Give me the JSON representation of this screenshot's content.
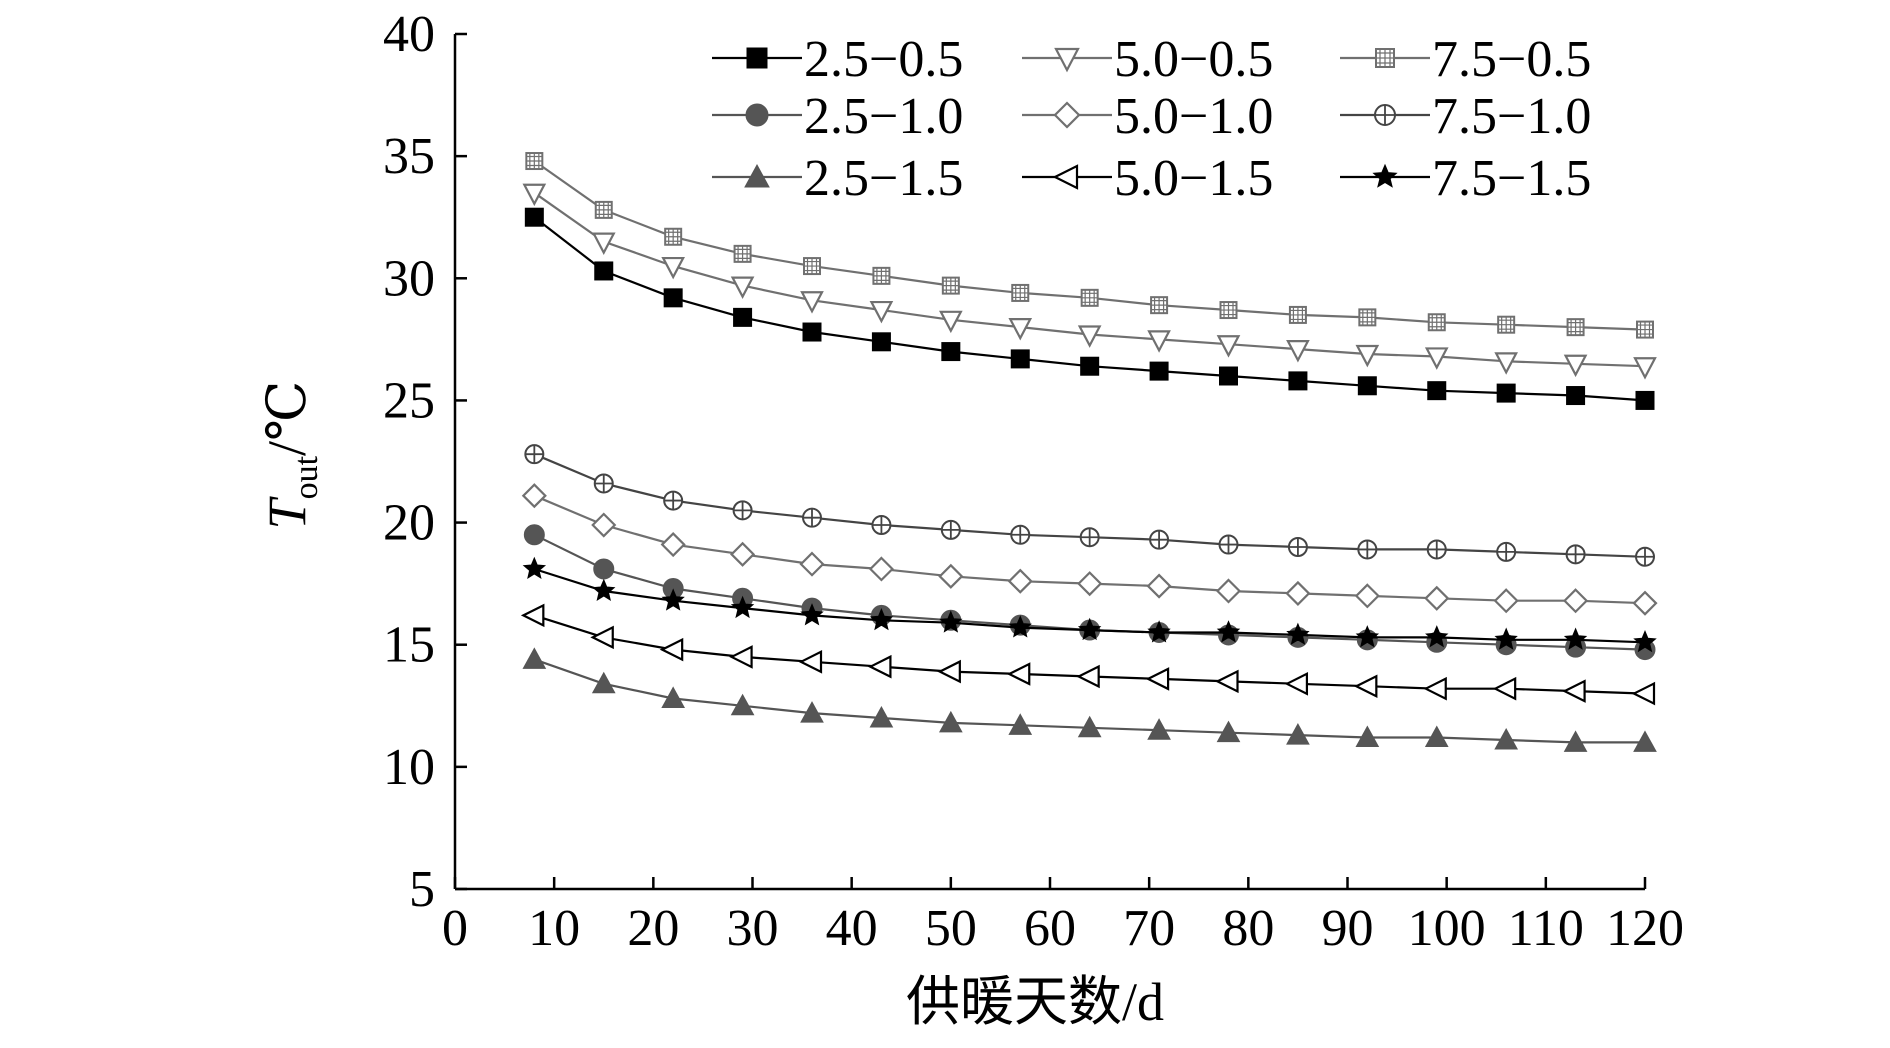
{
  "chart_data": {
    "type": "line",
    "xlabel_main": "供暖天数",
    "xlabel_unit": "/d",
    "ylabel_main": "T",
    "ylabel_sub": "out",
    "ylabel_unit": "/℃",
    "xlim": [
      0,
      120
    ],
    "ylim": [
      5,
      40
    ],
    "xticks": [
      0,
      10,
      20,
      30,
      40,
      50,
      60,
      70,
      80,
      90,
      100,
      110,
      120
    ],
    "yticks": [
      5,
      10,
      15,
      20,
      25,
      30,
      35,
      40
    ],
    "grid": false,
    "legend_position": "top-right",
    "x": [
      8,
      15,
      22,
      29,
      36,
      43,
      50,
      57,
      64,
      71,
      78,
      85,
      92,
      99,
      106,
      113,
      120
    ],
    "series": [
      {
        "name": "2.5−0.5",
        "marker": "square-filled",
        "color": "#000000",
        "values": [
          32.5,
          30.3,
          29.2,
          28.4,
          27.8,
          27.4,
          27.0,
          26.7,
          26.4,
          26.2,
          26.0,
          25.8,
          25.6,
          25.4,
          25.3,
          25.2,
          25.0
        ]
      },
      {
        "name": "5.0−0.5",
        "marker": "triangle-down-open",
        "color": "#707070",
        "values": [
          33.5,
          31.5,
          30.5,
          29.7,
          29.1,
          28.7,
          28.3,
          28.0,
          27.7,
          27.5,
          27.3,
          27.1,
          26.9,
          26.8,
          26.6,
          26.5,
          26.4
        ]
      },
      {
        "name": "7.5−0.5",
        "marker": "square-grid",
        "color": "#707070",
        "values": [
          34.8,
          32.8,
          31.7,
          31.0,
          30.5,
          30.1,
          29.7,
          29.4,
          29.2,
          28.9,
          28.7,
          28.5,
          28.4,
          28.2,
          28.1,
          28.0,
          27.9
        ]
      },
      {
        "name": "2.5−1.0",
        "marker": "circle-filled",
        "color": "#555555",
        "values": [
          19.5,
          18.1,
          17.3,
          16.9,
          16.5,
          16.2,
          16.0,
          15.8,
          15.6,
          15.5,
          15.4,
          15.3,
          15.2,
          15.1,
          15.0,
          14.9,
          14.8
        ]
      },
      {
        "name": "5.0−1.0",
        "marker": "diamond-open",
        "color": "#707070",
        "values": [
          21.1,
          19.9,
          19.1,
          18.7,
          18.3,
          18.1,
          17.8,
          17.6,
          17.5,
          17.4,
          17.2,
          17.1,
          17.0,
          16.9,
          16.8,
          16.8,
          16.7
        ]
      },
      {
        "name": "7.5−1.0",
        "marker": "circle-cross",
        "color": "#444444",
        "values": [
          22.8,
          21.6,
          20.9,
          20.5,
          20.2,
          19.9,
          19.7,
          19.5,
          19.4,
          19.3,
          19.1,
          19.0,
          18.9,
          18.9,
          18.8,
          18.7,
          18.6
        ]
      },
      {
        "name": "2.5−1.5",
        "marker": "triangle-up-filled",
        "color": "#555555",
        "values": [
          14.4,
          13.4,
          12.8,
          12.5,
          12.2,
          12.0,
          11.8,
          11.7,
          11.6,
          11.5,
          11.4,
          11.3,
          11.2,
          11.2,
          11.1,
          11.0,
          11.0
        ]
      },
      {
        "name": "5.0−1.5",
        "marker": "triangle-left-open",
        "color": "#000000",
        "values": [
          16.2,
          15.3,
          14.8,
          14.5,
          14.3,
          14.1,
          13.9,
          13.8,
          13.7,
          13.6,
          13.5,
          13.4,
          13.3,
          13.2,
          13.2,
          13.1,
          13.0
        ]
      },
      {
        "name": "7.5−1.5",
        "marker": "star",
        "color": "#000000",
        "values": [
          18.1,
          17.2,
          16.8,
          16.5,
          16.2,
          16.0,
          15.9,
          15.7,
          15.6,
          15.5,
          15.5,
          15.4,
          15.3,
          15.3,
          15.2,
          15.2,
          15.1
        ]
      }
    ]
  }
}
